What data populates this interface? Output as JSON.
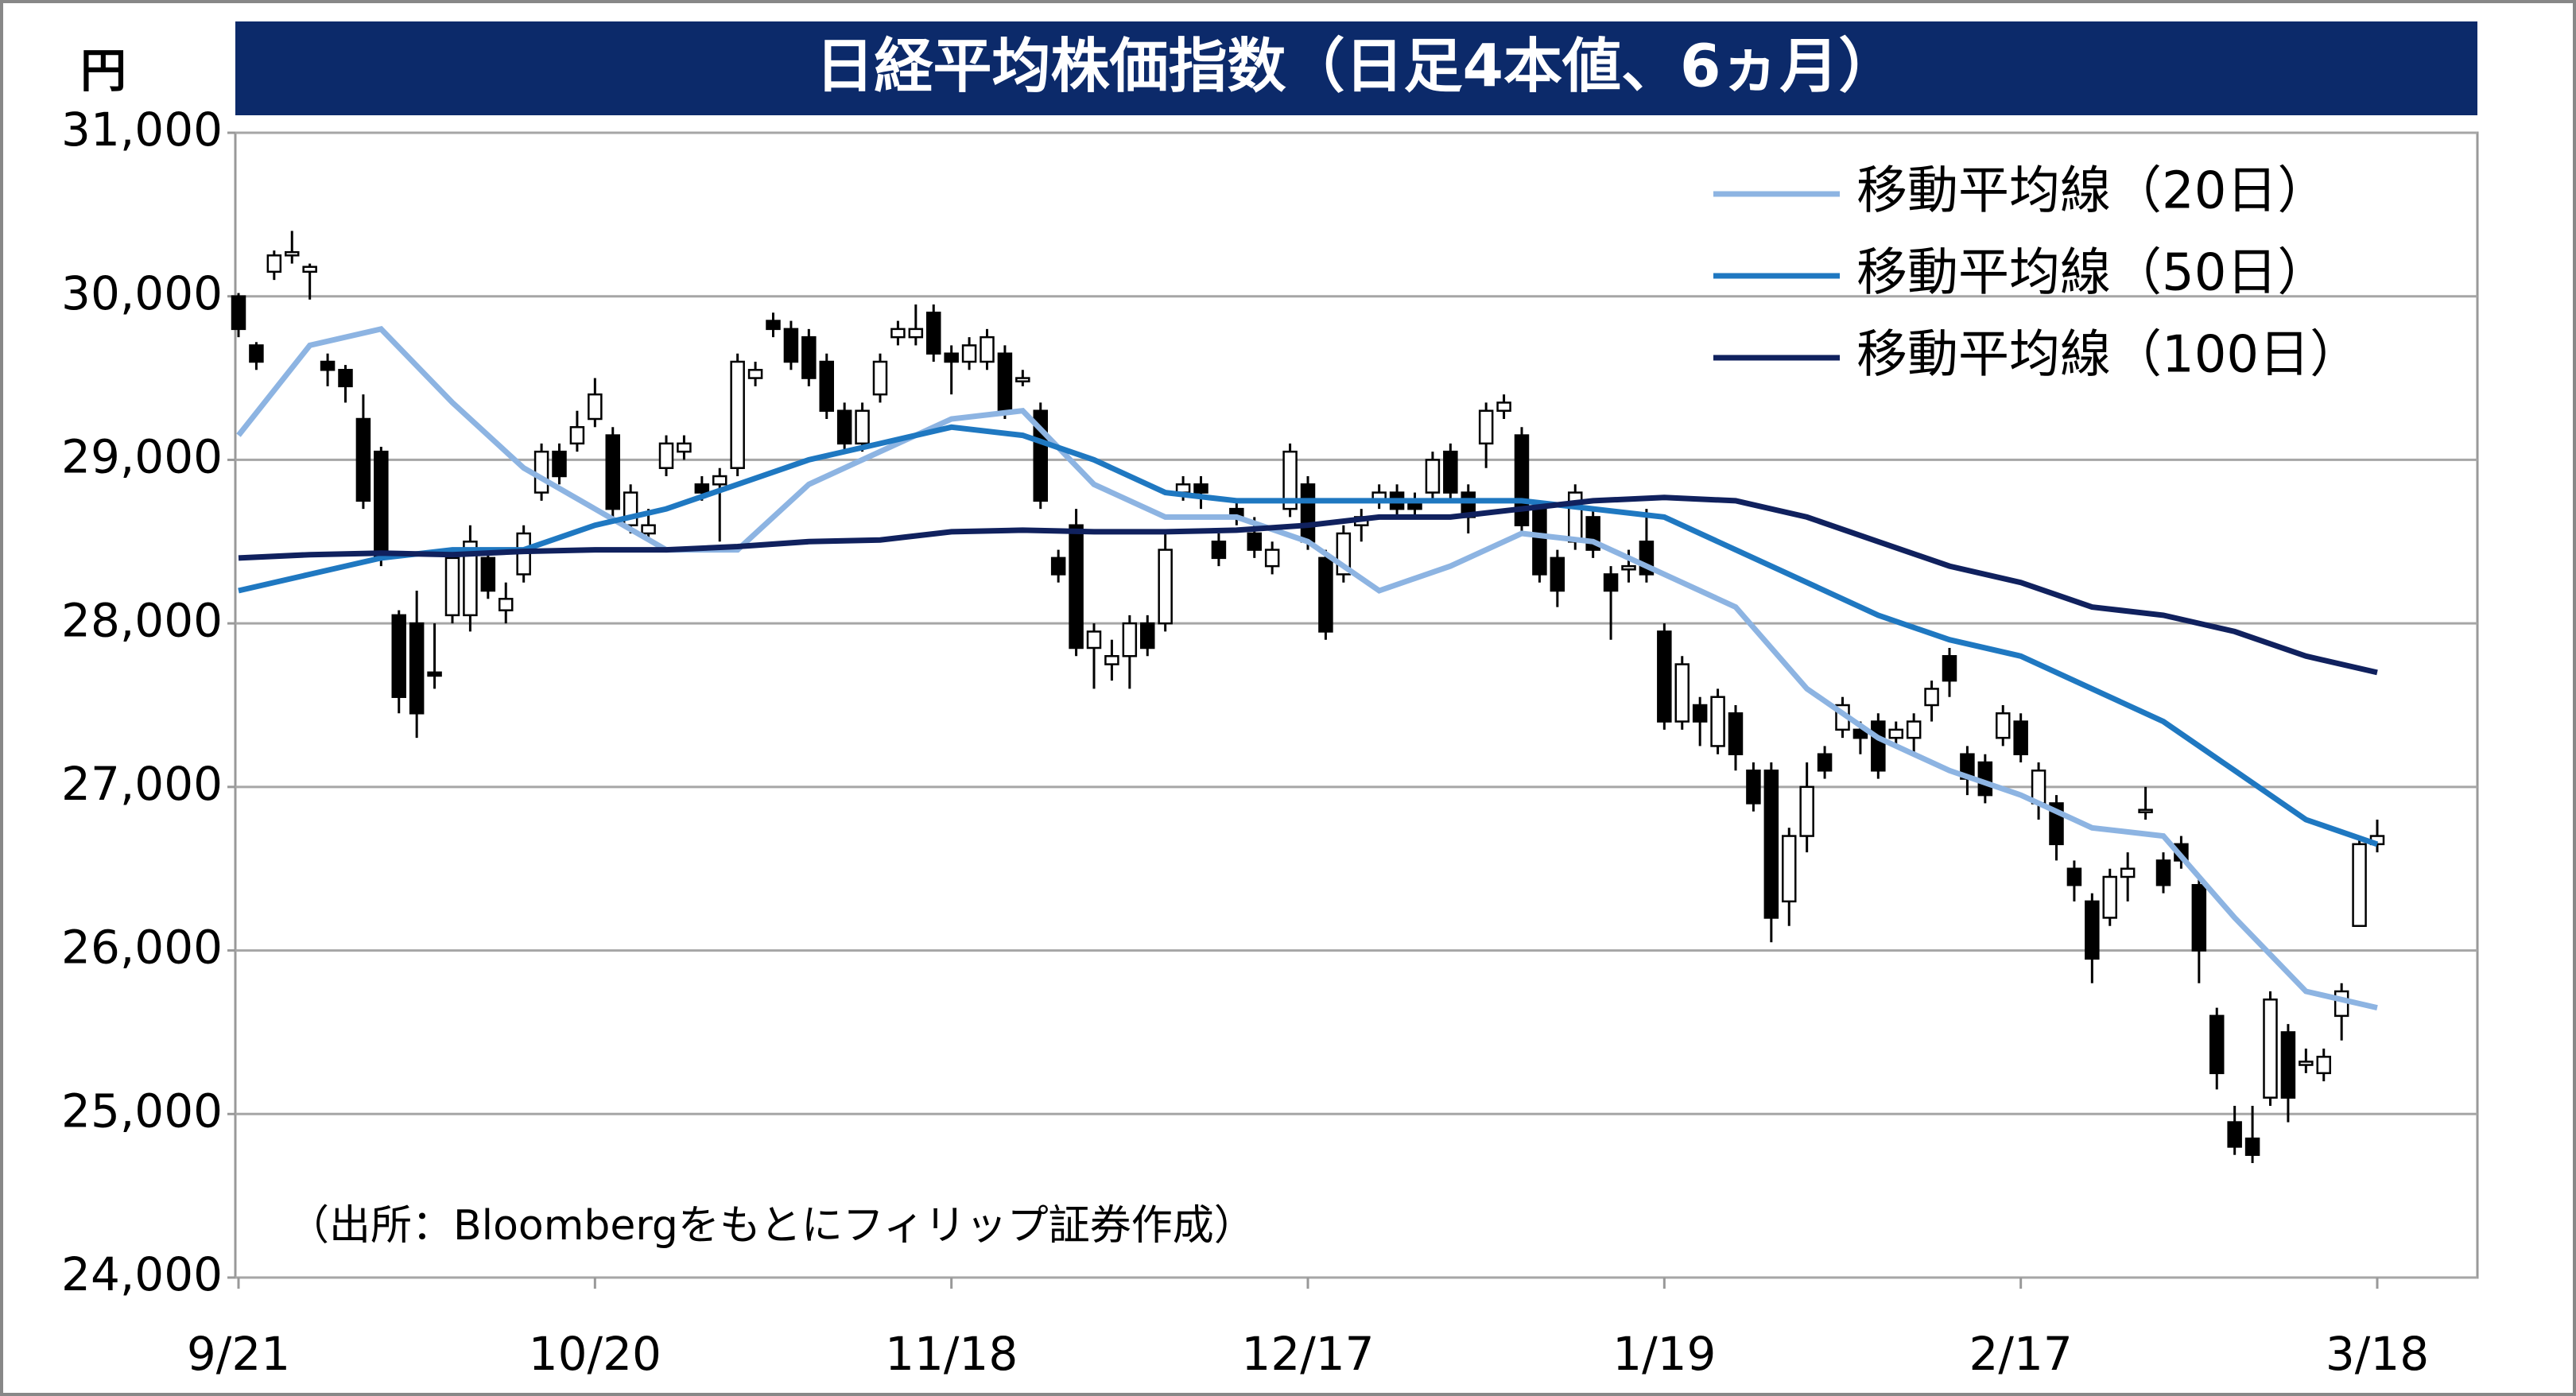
{
  "chart_data": {
    "type": "candlestick",
    "title": "日経平均株価指数（日足4本値、6ヵ月）",
    "y_label": "円",
    "annotation": "（出所：Bloombergをもとにフィリップ証券作成）",
    "categories": [
      "9/21",
      null,
      null,
      null,
      null,
      null,
      null,
      null,
      null,
      null,
      null,
      null,
      null,
      null,
      null,
      null,
      null,
      null,
      null,
      null,
      "10/20",
      null,
      null,
      null,
      null,
      null,
      null,
      null,
      null,
      null,
      null,
      null,
      null,
      null,
      null,
      null,
      null,
      null,
      null,
      null,
      "11/18",
      null,
      null,
      null,
      null,
      null,
      null,
      null,
      null,
      null,
      null,
      null,
      null,
      null,
      null,
      null,
      null,
      null,
      null,
      null,
      "12/17",
      null,
      null,
      null,
      null,
      null,
      null,
      null,
      null,
      null,
      null,
      null,
      null,
      null,
      null,
      null,
      null,
      null,
      null,
      null,
      "1/19",
      null,
      null,
      null,
      null,
      null,
      null,
      null,
      null,
      null,
      null,
      null,
      null,
      null,
      null,
      null,
      null,
      null,
      null,
      null,
      "2/17",
      null,
      null,
      null,
      null,
      null,
      null,
      null,
      null,
      null,
      null,
      null,
      null,
      null,
      null,
      null,
      null,
      null,
      null,
      null,
      "3/18"
    ],
    "open": [
      30000,
      29700,
      30150,
      30250,
      30150,
      29600,
      29550,
      29250,
      29050,
      28050,
      28000,
      27700,
      28050,
      28050,
      28400,
      28080,
      28300,
      28800,
      29050,
      29100,
      29250,
      29150,
      28600,
      28550,
      28950,
      29050,
      28850,
      28850,
      28950,
      29500,
      29850,
      29800,
      29750,
      29600,
      29300,
      29100,
      29400,
      29750,
      29750,
      29900,
      29650,
      29600,
      29600,
      29650,
      29480,
      29300,
      28400,
      28600,
      27850,
      27750,
      27800,
      28000,
      28000,
      28800,
      28850,
      28500,
      28700,
      28550,
      28350,
      28700,
      28850,
      28400,
      28300,
      28600,
      28750,
      28800,
      28750,
      28800,
      29050,
      28800,
      29100,
      29300,
      29150,
      28700,
      28400,
      28500,
      28650,
      28300,
      28330,
      28500,
      27950,
      27400,
      27500,
      27250,
      27450,
      27100,
      27100,
      26300,
      26700,
      27200,
      27350,
      27350,
      27400,
      27300,
      27300,
      27500,
      27800,
      27200,
      27150,
      27300,
      27400,
      26900,
      26900,
      26500,
      26300,
      26200,
      26450,
      26850,
      26550,
      26650,
      26400,
      25600,
      24950,
      24850,
      25100,
      25500,
      25300,
      25250,
      25600,
      26150,
      26650
    ],
    "high": [
      30020,
      29720,
      30280,
      30400,
      30200,
      29650,
      29580,
      29400,
      29080,
      28080,
      28200,
      28000,
      28450,
      28600,
      28450,
      28250,
      28600,
      29100,
      29100,
      29300,
      29500,
      29200,
      28850,
      28700,
      29150,
      29150,
      28900,
      28950,
      29650,
      29600,
      29900,
      29850,
      29800,
      29650,
      29350,
      29350,
      29650,
      29850,
      29950,
      29950,
      29700,
      29750,
      29800,
      29700,
      29550,
      29350,
      28450,
      28700,
      28000,
      27900,
      28050,
      28050,
      28550,
      28900,
      28900,
      28550,
      28750,
      28650,
      28500,
      29100,
      28900,
      28450,
      28600,
      28700,
      28850,
      28850,
      28800,
      29050,
      29100,
      28850,
      29350,
      29400,
      29200,
      28750,
      28450,
      28850,
      28700,
      28350,
      28450,
      28700,
      28000,
      27800,
      27550,
      27600,
      27500,
      27150,
      27150,
      26750,
      27150,
      27250,
      27550,
      27400,
      27450,
      27400,
      27450,
      27650,
      27850,
      27250,
      27200,
      27500,
      27450,
      27150,
      26950,
      26550,
      26350,
      26500,
      26600,
      27000,
      26600,
      26700,
      26450,
      25650,
      25050,
      25050,
      25750,
      25550,
      25400,
      25400,
      25800,
      26700,
      26800
    ],
    "low": [
      29750,
      29550,
      30100,
      30200,
      29980,
      29450,
      29350,
      28700,
      28350,
      27450,
      27300,
      27600,
      28000,
      27950,
      28150,
      28000,
      28250,
      28750,
      28850,
      29050,
      29200,
      28650,
      28550,
      28500,
      28900,
      29000,
      28750,
      28500,
      28900,
      29450,
      29750,
      29550,
      29450,
      29250,
      29050,
      29050,
      29350,
      29700,
      29700,
      29600,
      29400,
      29550,
      29550,
      29250,
      29450,
      28700,
      28250,
      27800,
      27600,
      27650,
      27600,
      27800,
      27950,
      28750,
      28700,
      28350,
      28600,
      28400,
      28300,
      28650,
      28450,
      27900,
      28250,
      28500,
      28700,
      28650,
      28650,
      28750,
      28750,
      28550,
      28950,
      29250,
      28550,
      28250,
      28100,
      28450,
      28400,
      27900,
      28250,
      28250,
      27350,
      27350,
      27250,
      27200,
      27100,
      26850,
      26050,
      26150,
      26600,
      27050,
      27300,
      27200,
      27050,
      27250,
      27200,
      27400,
      27550,
      26950,
      26900,
      27250,
      27150,
      26800,
      26550,
      26300,
      25800,
      26150,
      26300,
      26800,
      26350,
      26500,
      25800,
      25150,
      24750,
      24700,
      25050,
      24950,
      25250,
      25200,
      25450,
      26150,
      26600
    ],
    "close": [
      29800,
      29600,
      30250,
      30270,
      30180,
      29550,
      29450,
      28750,
      28400,
      27550,
      27450,
      27680,
      28400,
      28500,
      28200,
      28150,
      28550,
      29050,
      28900,
      29200,
      29400,
      28700,
      28800,
      28600,
      29100,
      29100,
      28800,
      28900,
      29600,
      29550,
      29800,
      29600,
      29500,
      29300,
      29100,
      29300,
      29600,
      29800,
      29800,
      29650,
      29600,
      29700,
      29750,
      29300,
      29500,
      28750,
      28300,
      27850,
      27950,
      27800,
      28000,
      27850,
      28450,
      28850,
      28800,
      28400,
      28650,
      28450,
      28450,
      29050,
      28500,
      27950,
      28550,
      28650,
      28800,
      28700,
      28700,
      29000,
      28800,
      28650,
      29300,
      29350,
      28600,
      28300,
      28200,
      28800,
      28450,
      28200,
      28350,
      28300,
      27400,
      27750,
      27400,
      27550,
      27200,
      26900,
      26200,
      26700,
      27000,
      27100,
      27500,
      27300,
      27100,
      27350,
      27400,
      27600,
      27650,
      27050,
      26950,
      27450,
      27200,
      27100,
      26650,
      26400,
      25950,
      26450,
      26500,
      26860,
      26400,
      26550,
      26000,
      25250,
      24800,
      24750,
      25700,
      25100,
      25320,
      25350,
      25750,
      26650,
      26700
    ],
    "rising_color": "#ffffff",
    "falling_color": "#000000",
    "series": [
      {
        "name": "移動平均線（20日）",
        "color": "#8db4e2",
        "x": [
          0,
          4,
          8,
          12,
          16,
          20,
          24,
          28,
          32,
          36,
          40,
          44,
          48,
          52,
          56,
          60,
          64,
          68,
          72,
          76,
          80,
          84,
          88,
          92,
          96,
          100,
          104,
          108,
          112,
          116,
          120
        ],
        "values": [
          29150,
          29700,
          29800,
          29350,
          28950,
          28700,
          28450,
          28450,
          28850,
          29050,
          29250,
          29300,
          28850,
          28650,
          28650,
          28500,
          28200,
          28350,
          28550,
          28500,
          28300,
          28100,
          27600,
          27300,
          27100,
          26950,
          26750,
          26700,
          26200,
          25750,
          25650
        ]
      },
      {
        "name": "移動平均線（50日）",
        "color": "#1f78c1",
        "x": [
          0,
          4,
          8,
          12,
          16,
          20,
          24,
          28,
          32,
          36,
          40,
          44,
          48,
          52,
          56,
          60,
          64,
          68,
          72,
          76,
          80,
          84,
          88,
          92,
          96,
          100,
          104,
          108,
          112,
          116,
          120
        ],
        "values": [
          28200,
          28300,
          28400,
          28450,
          28450,
          28600,
          28700,
          28850,
          29000,
          29100,
          29200,
          29150,
          29000,
          28800,
          28750,
          28750,
          28750,
          28750,
          28750,
          28700,
          28650,
          28450,
          28250,
          28050,
          27900,
          27800,
          27600,
          27400,
          27100,
          26800,
          26650
        ]
      },
      {
        "name": "移動平均線（100日）",
        "color": "#10215e",
        "x": [
          0,
          4,
          8,
          12,
          16,
          20,
          24,
          28,
          32,
          36,
          40,
          44,
          48,
          52,
          56,
          60,
          64,
          68,
          72,
          76,
          80,
          84,
          88,
          92,
          96,
          100,
          104,
          108,
          112,
          116,
          120
        ],
        "values": [
          28400,
          28420,
          28430,
          28420,
          28440,
          28450,
          28450,
          28470,
          28500,
          28510,
          28560,
          28570,
          28560,
          28560,
          28570,
          28600,
          28650,
          28650,
          28700,
          28750,
          28770,
          28750,
          28650,
          28500,
          28350,
          28250,
          28100,
          28050,
          27950,
          27800,
          27700
        ]
      }
    ],
    "ylim": [
      24000,
      31000
    ],
    "yticks": [
      {
        "value": 24000,
        "label": "24,000"
      },
      {
        "value": 25000,
        "label": "25,000"
      },
      {
        "value": 26000,
        "label": "26,000"
      },
      {
        "value": 27000,
        "label": "27,000"
      },
      {
        "value": 28000,
        "label": "28,000"
      },
      {
        "value": 29000,
        "label": "29,000"
      },
      {
        "value": 30000,
        "label": "30,000"
      },
      {
        "value": 31000,
        "label": "31,000"
      }
    ],
    "grid": true,
    "legend": "upper right"
  }
}
